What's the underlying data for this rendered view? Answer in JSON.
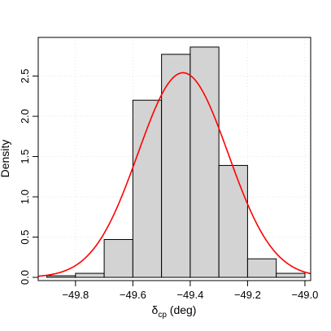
{
  "chart_data": {
    "type": "bar",
    "title": "",
    "xlabel": {
      "main": "δ",
      "subscript": "cp",
      "suffix": " (deg)"
    },
    "ylabel": "Density",
    "xlim": [
      -49.93,
      -48.98
    ],
    "ylim": [
      -0.04,
      2.98
    ],
    "grid": true,
    "x_ticks": [
      -49.8,
      -49.6,
      -49.4,
      -49.2,
      -49.0
    ],
    "x_tick_labels": [
      "−49.8",
      "−49.6",
      "−49.4",
      "−49.2",
      "−49.0"
    ],
    "y_ticks": [
      0.0,
      0.5,
      1.0,
      1.5,
      2.0,
      2.5
    ],
    "y_tick_labels": [
      "0.0",
      "0.5",
      "1.0",
      "1.5",
      "2.0",
      "2.5"
    ],
    "bin_edges": [
      -49.9,
      -49.8,
      -49.7,
      -49.6,
      -49.5,
      -49.4,
      -49.3,
      -49.2,
      -49.1,
      -49.0
    ],
    "values": [
      0.02,
      0.05,
      0.47,
      2.2,
      2.77,
      2.86,
      1.39,
      0.23,
      0.05
    ],
    "bar_color": "#d3d3d3",
    "bar_edge_color": "#000000",
    "curve": {
      "type": "normal-density",
      "mean": -49.425,
      "sd": 0.157,
      "color": "#ff0000"
    }
  }
}
